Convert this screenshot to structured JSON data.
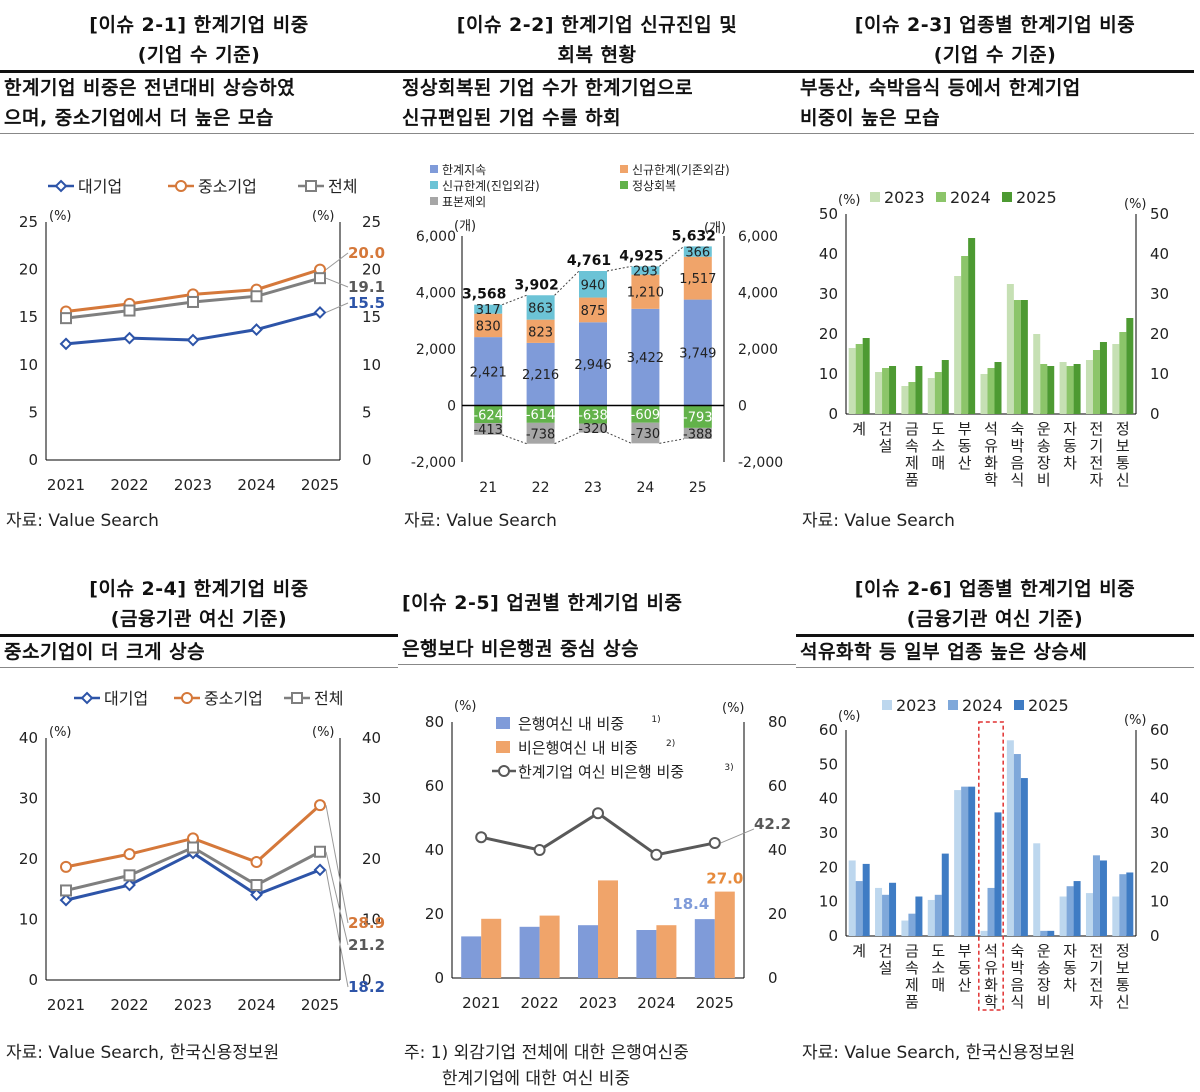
{
  "panels": [
    {
      "title": "[이슈 2-1] 한계기업 비중\n(기업 수 기준)",
      "subtitle": "한계기업 비중은 전년대비 상승하였으며, 중소기업에서 더 높은 모습",
      "subtitle_l1": "한계기업 비중은 전년대비 상승하였",
      "subtitle_l2": "으며, 중소기업에서 더 높은 모습",
      "source": "자료: Value Search"
    },
    {
      "title": "[이슈 2-2] 한계기업 신규진입 및\n회복 현황",
      "subtitle_l1": "정상회복된 기업 수가 한계기업으로",
      "subtitle_l2": "신규편입된 기업 수를 하회",
      "source": "자료: Value Search"
    },
    {
      "title": "[이슈 2-3] 업종별 한계기업 비중\n(기업 수 기준)",
      "subtitle_l1": "부동산, 숙박음식 등에서 한계기업",
      "subtitle_l2": "비중이 높은 모습",
      "source": "자료: Value Search"
    },
    {
      "title": "[이슈 2-4] 한계기업 비중\n(금융기관 여신 기준)",
      "subtitle_l1": "중소기업이 더 크게 상승",
      "source": "자료: Value Search, 한국신용정보원"
    },
    {
      "title": "[이슈 2-5] 업권별 한계기업 비중",
      "subtitle_l1": "은행보다 비은행권 중심 상승",
      "source_l1": "주: 1) 외감기업 전체에 대한 은행여신중",
      "source_l2": "       한계기업에 대한 여신 비중"
    },
    {
      "title": "[이슈 2-6] 업종별 한계기업 비중\n(금융기관 여신 기준)",
      "subtitle_l1": "석유화학 등 일부 업종 높은 상승세",
      "source": "자료: Value Search, 한국신용정보원"
    }
  ],
  "chart_data": [
    {
      "type": "line",
      "x": [
        "2021",
        "2022",
        "2023",
        "2024",
        "2025"
      ],
      "yunit": "(%)",
      "ylim": [
        0,
        25
      ],
      "yticks": [
        "0",
        "5",
        "10",
        "15",
        "20",
        "25"
      ],
      "series": [
        {
          "name": "대기업",
          "values": [
            12.2,
            12.8,
            12.6,
            13.7,
            15.5
          ],
          "color": "#2d54a8",
          "marker": "diamond"
        },
        {
          "name": "중소기업",
          "values": [
            15.6,
            16.4,
            17.4,
            17.9,
            20.0
          ],
          "color": "#d5783a",
          "marker": "circle"
        },
        {
          "name": "전체",
          "values": [
            14.9,
            15.7,
            16.6,
            17.2,
            19.1
          ],
          "color": "#7f7f7f",
          "marker": "square"
        }
      ],
      "labels": [
        "20.0",
        "19.1",
        "15.5"
      ]
    },
    {
      "type": "bar",
      "categories": [
        "21",
        "22",
        "23",
        "24",
        "25"
      ],
      "yunit": "(개)",
      "ylim": [
        -2000,
        6000
      ],
      "yticks": [
        "-2,000",
        "0",
        "2,000",
        "4,000",
        "6,000"
      ],
      "series": [
        {
          "name": "한계지속",
          "values": [
            2421,
            2216,
            2946,
            3422,
            3749
          ],
          "labels": [
            "2,421",
            "2,216",
            "2,946",
            "3,422",
            "3,749"
          ],
          "color": "#7f9bd9"
        },
        {
          "name": "신규한계(기존외감)",
          "values": [
            830,
            823,
            875,
            1210,
            1517
          ],
          "labels": [
            "830",
            "823",
            "875",
            "1,210",
            "1,517"
          ],
          "color": "#f0a46a"
        },
        {
          "name": "신규한계(진입외감)",
          "values": [
            317,
            863,
            940,
            293,
            366
          ],
          "labels": [
            "317",
            "863",
            "940",
            "293",
            "366"
          ],
          "color": "#6cc3d6"
        },
        {
          "name": "정상회복",
          "values": [
            -624,
            -614,
            -638,
            -609,
            -793
          ],
          "labels": [
            "-624",
            "-614",
            "-638",
            "-609",
            "-793"
          ],
          "color": "#62b24a"
        },
        {
          "name": "표본제외",
          "values": [
            -413,
            -738,
            -320,
            -730,
            -388
          ],
          "labels": [
            "-413",
            "-738",
            "-320",
            "-730",
            "-388"
          ],
          "color": "#a6a6a6"
        }
      ],
      "totals": [
        "3,568",
        "3,902",
        "4,761",
        "4,925",
        "5,632"
      ]
    },
    {
      "type": "bar",
      "categories": [
        "계",
        "건설",
        "금속제품",
        "도소매",
        "부동산",
        "석유화학",
        "숙박음식",
        "운송장비",
        "자동차",
        "전기전자",
        "정보통신"
      ],
      "yunit": "(%)",
      "ylim": [
        0,
        50
      ],
      "yticks": [
        "0",
        "10",
        "20",
        "30",
        "40",
        "50"
      ],
      "series": [
        {
          "name": "2023",
          "values": [
            16.5,
            10.5,
            7,
            9,
            34.5,
            10,
            32.5,
            20,
            13,
            13.5,
            17.5
          ],
          "color": "#c6e0b4"
        },
        {
          "name": "2024",
          "values": [
            17.5,
            11.5,
            8,
            10.5,
            39.5,
            11.5,
            28.5,
            12.5,
            12,
            16,
            20.5
          ],
          "color": "#8cc56a"
        },
        {
          "name": "2025",
          "values": [
            19,
            12,
            12,
            13.5,
            44,
            13,
            28.5,
            12,
            12.5,
            18,
            24
          ],
          "color": "#4d9a32"
        }
      ]
    },
    {
      "type": "line",
      "x": [
        "2021",
        "2022",
        "2023",
        "2024",
        "2025"
      ],
      "yunit": "(%)",
      "ylim": [
        0,
        40
      ],
      "yticks": [
        "0",
        "10",
        "20",
        "30",
        "40"
      ],
      "series": [
        {
          "name": "대기업",
          "values": [
            13.2,
            15.7,
            21.0,
            14.1,
            18.2
          ],
          "color": "#2d54a8",
          "marker": "diamond"
        },
        {
          "name": "중소기업",
          "values": [
            18.7,
            20.8,
            23.4,
            19.5,
            28.9
          ],
          "color": "#d5783a",
          "marker": "circle"
        },
        {
          "name": "전체",
          "values": [
            14.8,
            17.3,
            21.9,
            15.7,
            21.2
          ],
          "color": "#7f7f7f",
          "marker": "square"
        }
      ],
      "labels": [
        "28.9",
        "21.2",
        "18.2"
      ]
    },
    {
      "type": "bar",
      "categories": [
        "2021",
        "2022",
        "2023",
        "2024",
        "2025"
      ],
      "yunit": "(%)",
      "ylim": [
        0,
        80
      ],
      "yticks": [
        "0",
        "20",
        "40",
        "60",
        "80"
      ],
      "series": [
        {
          "name": "은행여신 내 비중",
          "sup": "1)",
          "values": [
            13,
            16,
            16.5,
            15,
            18.4
          ],
          "color": "#7f9bd9"
        },
        {
          "name": "비은행여신 내 비중",
          "sup": "2)",
          "values": [
            18.5,
            19.5,
            30.5,
            16.5,
            27.0
          ],
          "color": "#f0a46a"
        },
        {
          "name": "한계기업 여신 비은행 비중",
          "sup": "3)",
          "values": [
            44,
            40,
            51.5,
            38.5,
            42.2
          ],
          "color": "#595959",
          "type": "line"
        }
      ],
      "labels": [
        "42.2",
        "27.0",
        "18.4"
      ]
    },
    {
      "type": "bar",
      "categories": [
        "계",
        "건설",
        "금속제품",
        "도소매",
        "부동산",
        "석유화학",
        "숙박음식",
        "운송장비",
        "자동차",
        "전기전자",
        "정보통신"
      ],
      "yunit": "(%)",
      "ylim": [
        0,
        60
      ],
      "yticks": [
        "0",
        "10",
        "20",
        "30",
        "40",
        "50",
        "60"
      ],
      "series": [
        {
          "name": "2023",
          "values": [
            22,
            14,
            4.5,
            10.5,
            42.5,
            1.5,
            57,
            27,
            11.5,
            12.5,
            11.5
          ],
          "color": "#bdd7ee"
        },
        {
          "name": "2024",
          "values": [
            16,
            12,
            6.5,
            12,
            43.5,
            14,
            53,
            1.5,
            14.5,
            23.5,
            18
          ],
          "color": "#7fa8da"
        },
        {
          "name": "2025",
          "values": [
            21,
            15.5,
            11.5,
            24,
            43.5,
            36,
            46,
            1.5,
            16,
            22,
            18.5
          ],
          "color": "#3f7cc4"
        }
      ],
      "highlight": "석유화학"
    }
  ]
}
